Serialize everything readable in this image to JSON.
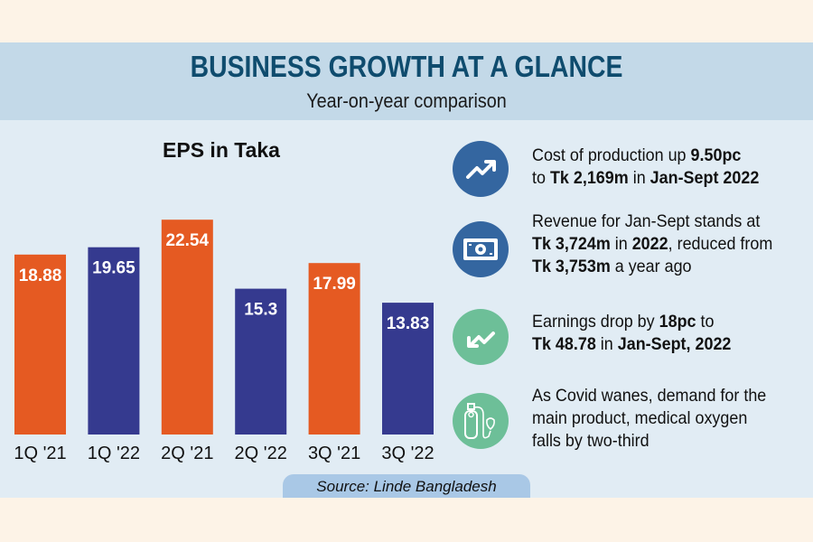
{
  "header": {
    "title": "BUSINESS GROWTH AT A GLANCE",
    "subtitle": "Year-on-year comparison"
  },
  "colors": {
    "bar_2021": "#e55a22",
    "bar_2022": "#353a8f",
    "header_bg": "#c3d9e8",
    "panel_bg": "#e1ecf4",
    "title_color": "#0f4c6e",
    "icon_blue": "#3466a0",
    "icon_green": "#6dbf98"
  },
  "chart_data": {
    "type": "bar",
    "title": "EPS in Taka",
    "categories": [
      "1Q '21",
      "1Q '22",
      "2Q '21",
      "2Q '22",
      "3Q '21",
      "3Q '22"
    ],
    "values": [
      18.88,
      19.65,
      22.54,
      15.3,
      17.99,
      13.83
    ],
    "value_labels": [
      "18.88",
      "19.65",
      "22.54",
      "15.3",
      "17.99",
      "13.83"
    ],
    "series_by_bar": [
      "2021",
      "2022",
      "2021",
      "2022",
      "2021",
      "2022"
    ],
    "xlabel": "",
    "ylabel": "",
    "ylim": [
      0,
      24
    ],
    "grid": false,
    "legend": "none"
  },
  "facts": [
    {
      "icon": "trend-up-icon",
      "segments": [
        {
          "t": "Cost of production up ",
          "b": false
        },
        {
          "t": "9.50pc",
          "b": true
        },
        {
          "t": "\n",
          "b": false
        },
        {
          "t": "to ",
          "b": false
        },
        {
          "t": "Tk 2,169m",
          "b": true
        },
        {
          "t": " in ",
          "b": false
        },
        {
          "t": "Jan-Sept 2022",
          "b": true
        }
      ]
    },
    {
      "icon": "banknote-icon",
      "segments": [
        {
          "t": "Revenue for Jan-Sept stands at",
          "b": false
        },
        {
          "t": "\n",
          "b": false
        },
        {
          "t": "Tk 3,724m",
          "b": true
        },
        {
          "t": " in ",
          "b": false
        },
        {
          "t": "2022",
          "b": true
        },
        {
          "t": ", reduced from",
          "b": false
        },
        {
          "t": "\n",
          "b": false
        },
        {
          "t": "Tk 3,753m",
          "b": true
        },
        {
          "t": " a year ago",
          "b": false
        }
      ]
    },
    {
      "icon": "trend-down-icon",
      "segments": [
        {
          "t": "Earnings drop by ",
          "b": false
        },
        {
          "t": "18pc",
          "b": true
        },
        {
          "t": " to",
          "b": false
        },
        {
          "t": "\n",
          "b": false
        },
        {
          "t": "Tk 48.78",
          "b": true
        },
        {
          "t": " in ",
          "b": false
        },
        {
          "t": "Jan-Sept, 2022",
          "b": true
        }
      ]
    },
    {
      "icon": "oxygen-cylinder-icon",
      "segments": [
        {
          "t": "As Covid wanes, demand for the",
          "b": false
        },
        {
          "t": "\n",
          "b": false
        },
        {
          "t": "main product, medical oxygen",
          "b": false
        },
        {
          "t": "\n",
          "b": false
        },
        {
          "t": "falls by two-third",
          "b": false
        }
      ]
    }
  ],
  "source": "Source: Linde Bangladesh"
}
